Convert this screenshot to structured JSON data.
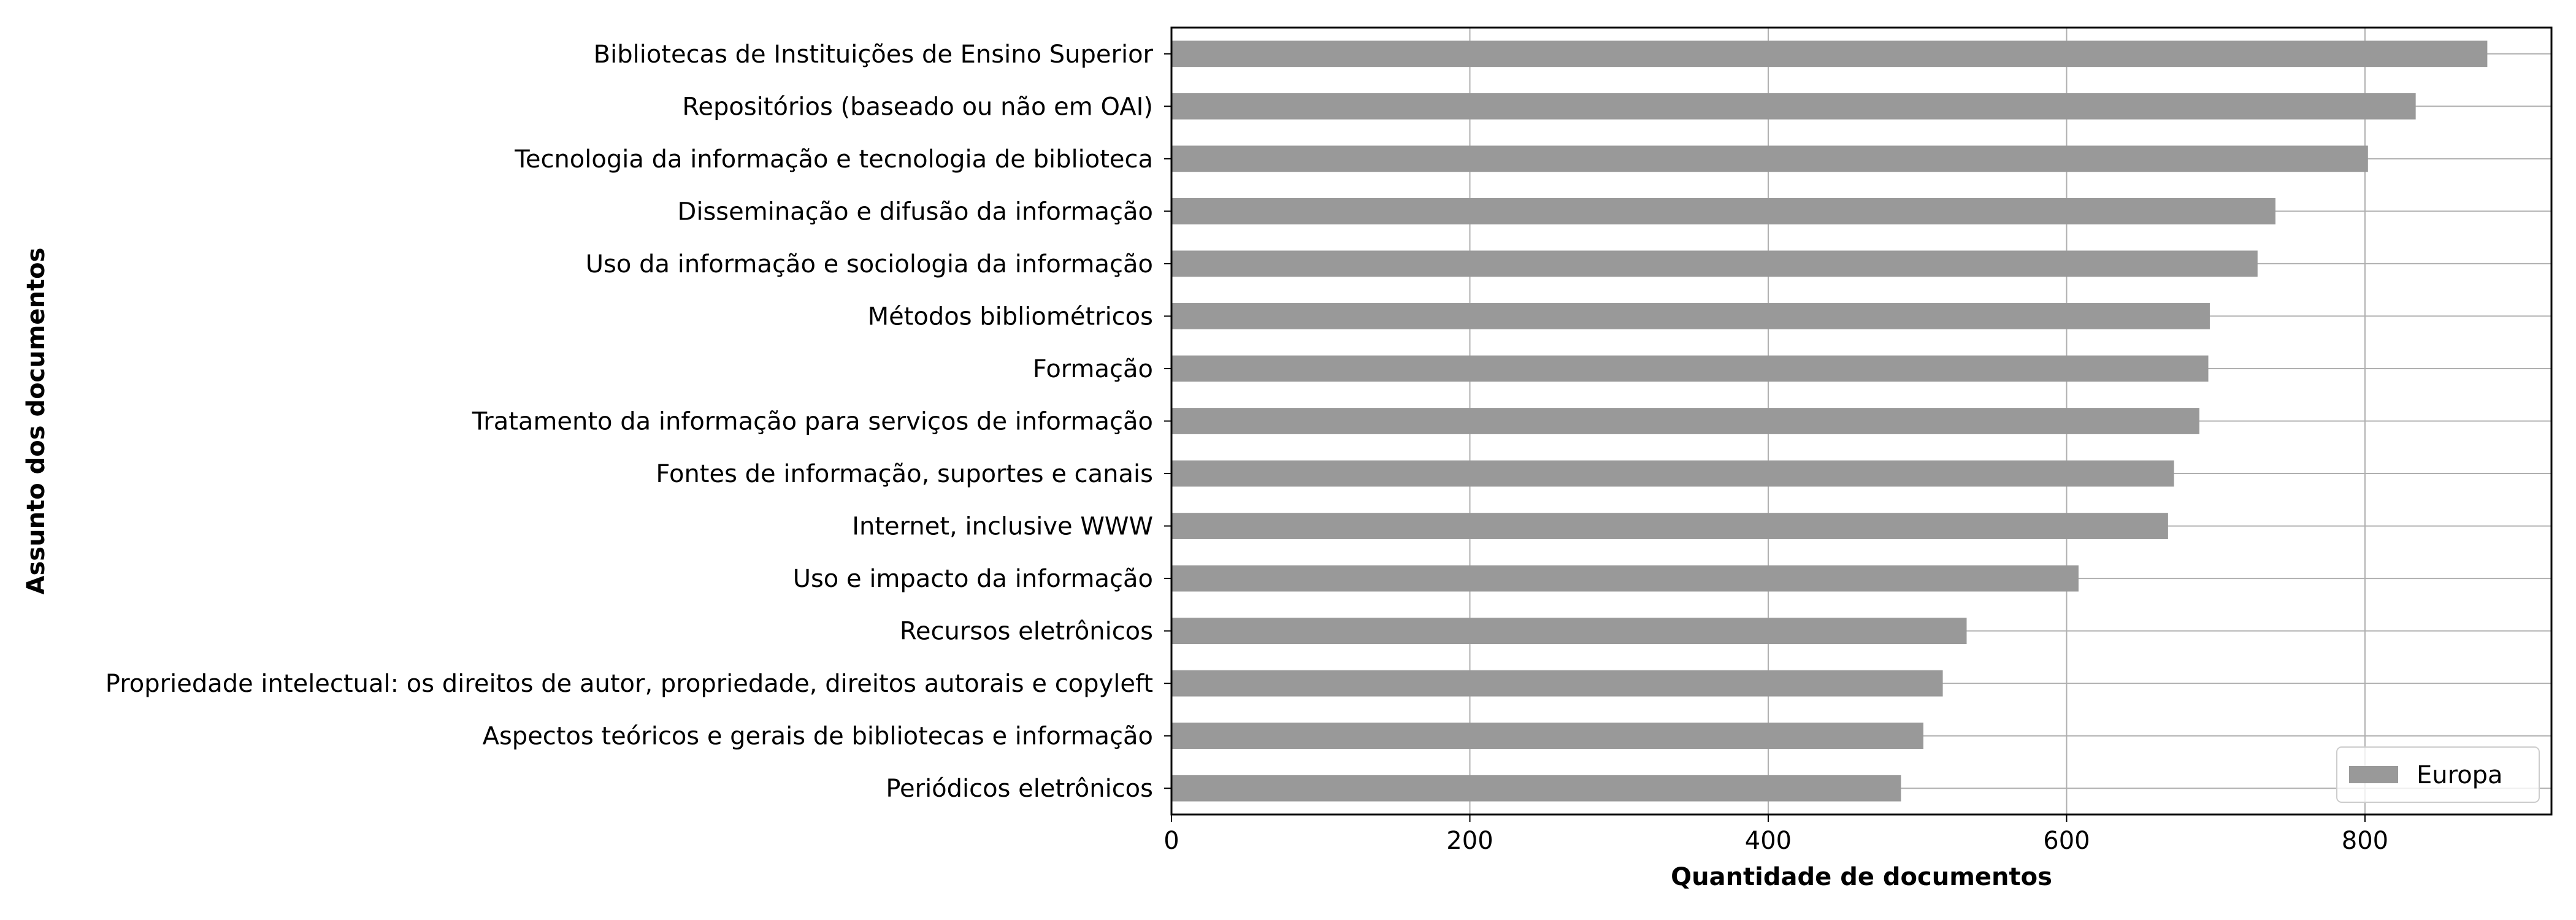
{
  "chart_data": {
    "type": "bar",
    "orientation": "horizontal",
    "title": "",
    "xlabel": "Quantidade de documentos",
    "ylabel": "Assunto dos documentos",
    "xlim": [
      0,
      925
    ],
    "xticks": [
      0,
      200,
      400,
      600,
      800
    ],
    "grid": true,
    "legend_position": "lower-right",
    "categories": [
      "Bibliotecas de Instituições de Ensino Superior",
      "Repositórios (baseado ou não em OAI)",
      "Tecnologia da informação e tecnologia de biblioteca",
      "Disseminação e difusão da informação",
      "Uso da informação e sociologia da informação",
      "Métodos bibliométricos",
      "Formação",
      "Tratamento da informação para serviços de informação",
      "Fontes de informação, suportes e canais",
      "Internet, inclusive WWW",
      "Uso e impacto da informação",
      "Recursos eletrônicos",
      "Propriedade intelectual: os direitos de autor, propriedade, direitos autorais e copyleft",
      "Aspectos teóricos e gerais de bibliotecas e informação",
      "Periódicos eletrônicos"
    ],
    "series": [
      {
        "name": "Europa",
        "color": "#999999",
        "values": [
          882,
          834,
          802,
          740,
          728,
          696,
          695,
          689,
          672,
          668,
          608,
          533,
          517,
          504,
          489
        ]
      }
    ]
  }
}
